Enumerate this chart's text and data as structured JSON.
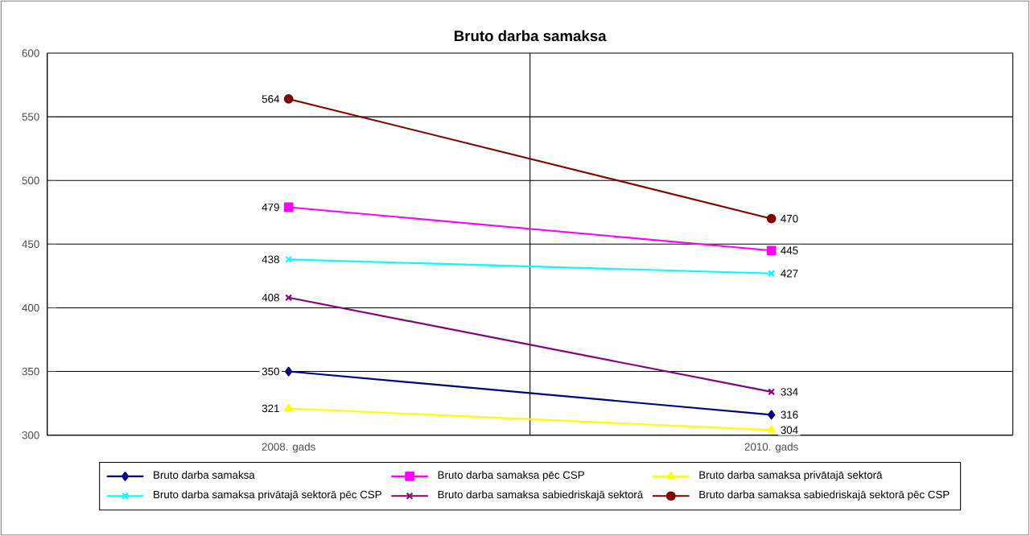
{
  "chart_data": {
    "type": "line",
    "title": "Bruto darba samaksa",
    "categories": [
      "2008. gads",
      "2010. gads"
    ],
    "series": [
      {
        "name": "Bruto darba samaksa",
        "color": "#000080",
        "values": [
          350,
          316
        ],
        "marker": "diamond"
      },
      {
        "name": "Bruto darba samaksa pēc CSP",
        "color": "#ff00ff",
        "values": [
          479,
          445
        ],
        "marker": "square"
      },
      {
        "name": "Bruto darba samaksa privātajā sektorā",
        "color": "#ffff00",
        "values": [
          321,
          304
        ],
        "marker": "triangle"
      },
      {
        "name": "Bruto darba samaksa privātajā sektorā pēc CSP",
        "color": "#00ffff",
        "values": [
          438,
          427
        ],
        "marker": "cross"
      },
      {
        "name": "Bruto darba samaksa sabiedriskajā sektorā",
        "color": "#800080",
        "values": [
          408,
          334
        ],
        "marker": "cross"
      },
      {
        "name": "Bruto darba samaksa sabiedriskajā sektorā pēc CSP",
        "color": "#800000",
        "values": [
          564,
          470
        ],
        "marker": "circle"
      }
    ],
    "ylim": [
      300,
      600
    ],
    "yticks": [
      300,
      350,
      400,
      450,
      500,
      550,
      600
    ],
    "grid": true,
    "legend": "bottom",
    "data_labels": true
  }
}
